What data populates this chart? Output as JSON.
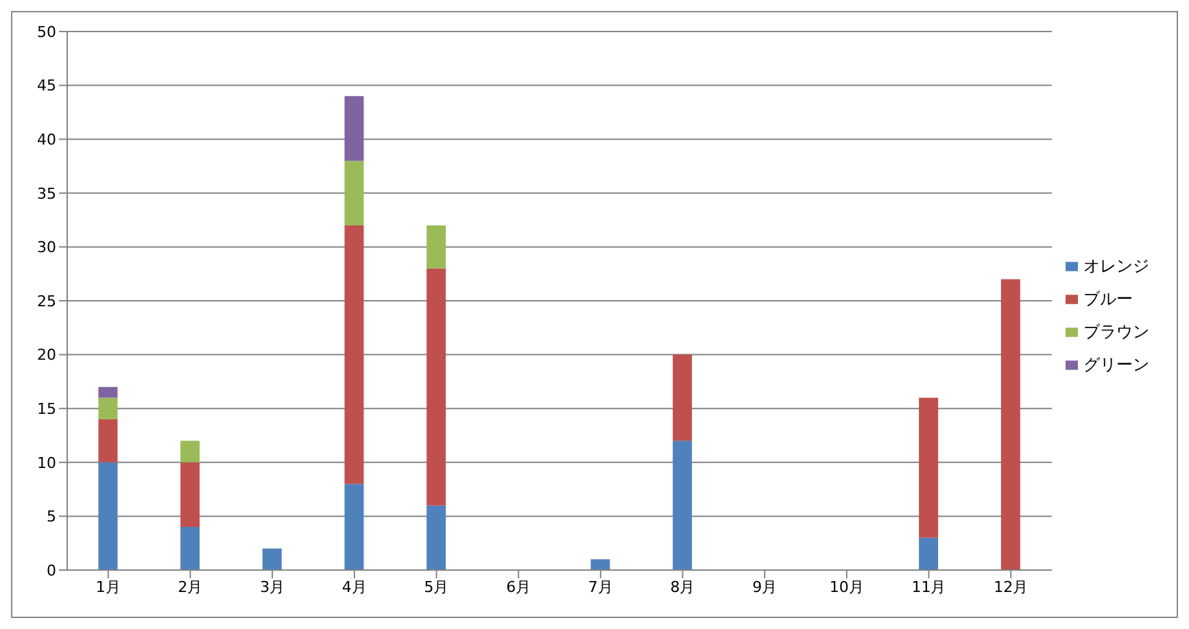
{
  "chart_data": {
    "type": "bar",
    "stacked": true,
    "categories": [
      "1月",
      "2月",
      "3月",
      "4月",
      "5月",
      "6月",
      "7月",
      "8月",
      "9月",
      "10月",
      "11月",
      "12月"
    ],
    "series": [
      {
        "name": "オレンジ",
        "color": "#4f81bd",
        "values": [
          10,
          4,
          2,
          8,
          6,
          0,
          1,
          12,
          0,
          0,
          3,
          0
        ]
      },
      {
        "name": "ブルー",
        "color": "#c0504d",
        "values": [
          4,
          6,
          0,
          24,
          22,
          0,
          0,
          8,
          0,
          0,
          13,
          27
        ]
      },
      {
        "name": "ブラウン",
        "color": "#9bbb59",
        "values": [
          2,
          2,
          0,
          6,
          4,
          0,
          0,
          0,
          0,
          0,
          0,
          0
        ]
      },
      {
        "name": "グリーン",
        "color": "#8064a2",
        "values": [
          1,
          0,
          0,
          6,
          0,
          0,
          0,
          0,
          0,
          0,
          0,
          0
        ]
      }
    ],
    "ylim": [
      0,
      50
    ],
    "yticks": [
      0,
      5,
      10,
      15,
      20,
      25,
      30,
      35,
      40,
      45,
      50
    ],
    "grid": "y",
    "legend": "right"
  }
}
